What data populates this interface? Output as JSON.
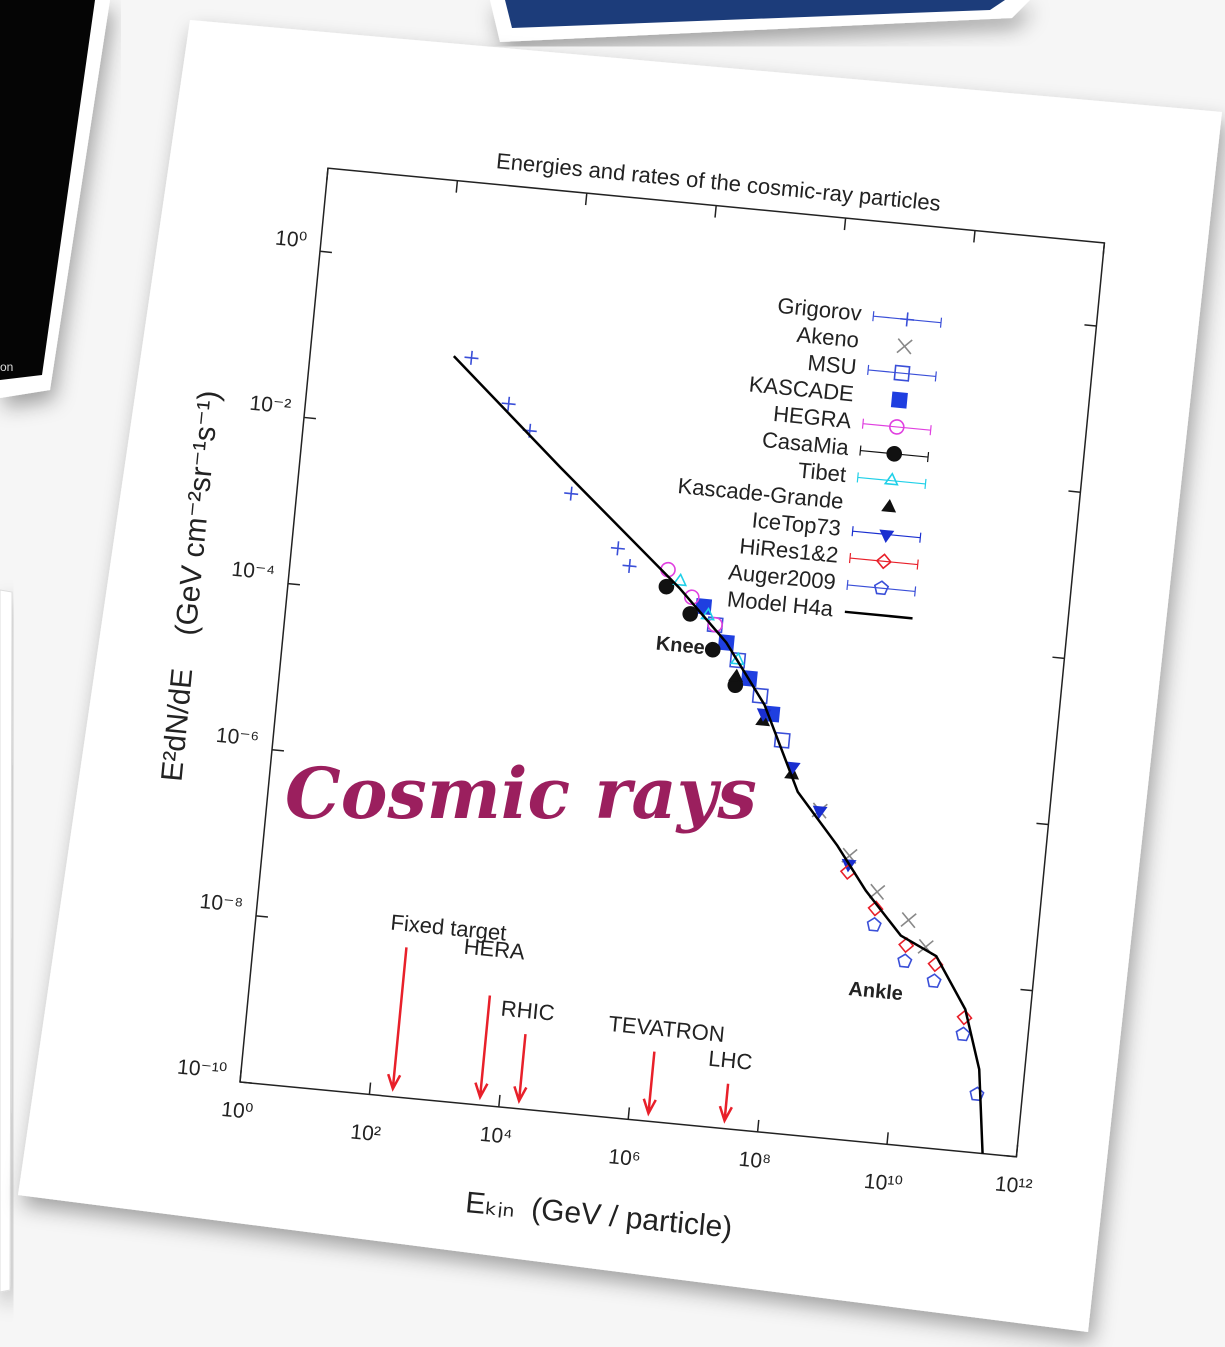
{
  "background_photo": {
    "caption": "on"
  },
  "overlay_text": "Cosmic rays",
  "chart_data": {
    "type": "scatter",
    "title": "Energies and rates of the cosmic-ray particles",
    "x_label": "Eₖᵢₙ  (GeV / particle)",
    "y_label": "E²dN/dE    (GeV cm⁻²sr⁻¹s⁻¹)",
    "xscale": "log",
    "yscale": "log",
    "grid": false,
    "legend": "top right",
    "xlim": [
      1,
      1000000000000.0
    ],
    "ylim": [
      1e-10,
      10
    ],
    "xticks": [
      {
        "value": 1,
        "label": "10⁰"
      },
      {
        "value": 100,
        "label": "10²"
      },
      {
        "value": 10000.0,
        "label": "10⁴"
      },
      {
        "value": 1000000.0,
        "label": "10⁶"
      },
      {
        "value": 100000000.0,
        "label": "10⁸"
      },
      {
        "value": 10000000000.0,
        "label": "10¹⁰"
      },
      {
        "value": 1000000000000.0,
        "label": "10¹²"
      }
    ],
    "yticks": [
      {
        "value": 1e-10,
        "label": "10⁻¹⁰"
      },
      {
        "value": 1e-08,
        "label": "10⁻⁸"
      },
      {
        "value": 1e-06,
        "label": "10⁻⁶"
      },
      {
        "value": 0.0001,
        "label": "10⁻⁴"
      },
      {
        "value": 0.01,
        "label": "10⁻²"
      },
      {
        "value": 1,
        "label": "10⁰"
      }
    ],
    "series": [
      {
        "name": "Grigorov",
        "color": "#3a4fd8",
        "marker": "plus",
        "x": [
          300,
          1300,
          3000,
          16000,
          100000,
          160000
        ],
        "values": [
          0.08,
          0.025,
          0.0126,
          0.0025,
          0.00063,
          0.0004
        ]
      },
      {
        "name": "Akeno",
        "color": "#888888",
        "marker": "cross",
        "x": [
          300000000.0,
          1000000000.0,
          3000000000.0,
          10000000000.0,
          20000000000.0
        ],
        "values": [
          8e-07,
          2.5e-07,
          1e-07,
          5e-08,
          2.5e-08
        ]
      },
      {
        "name": "MSU",
        "color": "#3a4fd8",
        "marker": "square-open",
        "x": [
          4000000.0,
          10000000.0,
          25000000.0,
          63000000.0
        ],
        "values": [
          0.0001,
          4e-05,
          1.6e-05,
          5e-06
        ]
      },
      {
        "name": "KASCADE",
        "color": "#1f3fe0",
        "marker": "square",
        "x": [
          2500000.0,
          6300000.0,
          16000000.0,
          40000000.0
        ],
        "values": [
          0.00016,
          6.3e-05,
          2.5e-05,
          1e-05
        ]
      },
      {
        "name": "HEGRA",
        "color": "#e040e0",
        "marker": "circle-open",
        "x": [
          630000.0,
          1600000.0,
          4000000.0
        ],
        "values": [
          0.0004,
          0.0002,
          0.0001
        ]
      },
      {
        "name": "CasaMia",
        "color": "#111111",
        "marker": "circle",
        "x": [
          630000.0,
          1600000.0,
          4000000.0,
          10000000.0
        ],
        "values": [
          0.00025,
          0.000126,
          5e-05,
          2e-05
        ]
      },
      {
        "name": "Tibet",
        "color": "#20d0e8",
        "marker": "triangle-open",
        "x": [
          1000000.0,
          3000000.0,
          10000000.0
        ],
        "values": [
          0.0003,
          0.000126,
          4e-05
        ]
      },
      {
        "name": "Kascade-Grande",
        "color": "#111111",
        "marker": "triangle",
        "x": [
          10000000.0,
          30000000.0,
          100000000.0
        ],
        "values": [
          2.5e-05,
          8e-06,
          2e-06
        ]
      },
      {
        "name": "IceTop73",
        "color": "#1a2fd0",
        "marker": "triangle-down",
        "x": [
          30000000.0,
          100000000.0,
          300000000.0,
          1000000000.0
        ],
        "values": [
          1e-05,
          2.5e-06,
          8e-07,
          2e-07
        ]
      },
      {
        "name": "HiRes1&2",
        "color": "#e8202a",
        "marker": "diamond-open",
        "x": [
          1000000000.0,
          3000000000.0,
          10000000000.0,
          30000000000.0,
          100000000000.0
        ],
        "values": [
          1.6e-07,
          6.3e-08,
          2.5e-08,
          1.6e-08,
          4e-09
        ]
      },
      {
        "name": "Auger2009",
        "color": "#3a4fd8",
        "marker": "pentagon-open",
        "x": [
          3000000000.0,
          10000000000.0,
          30000000000.0,
          100000000000.0,
          200000000000.0
        ],
        "values": [
          4e-08,
          1.6e-08,
          1e-08,
          2.5e-09,
          5e-10
        ]
      },
      {
        "name": "Model H4a",
        "color": "#000000",
        "marker": "line",
        "x": [
          160,
          10000.0,
          1000000.0,
          6300000.0,
          30000000.0,
          130000000.0,
          630000000.0,
          2000000000.0,
          8000000000.0,
          30000000000.0,
          100000000000.0,
          200000000000.0,
          300000000000.0
        ],
        "values": [
          0.08,
          0.005,
          0.00025,
          6.3e-05,
          1.26e-05,
          1.26e-06,
          3.2e-07,
          1e-07,
          3.2e-08,
          2e-08,
          5e-09,
          1e-09,
          1e-10
        ]
      }
    ],
    "annotations": [
      {
        "text": "Knee",
        "x": 1260000.0,
        "y": 5e-05
      },
      {
        "text": "Ankle",
        "x": 4000000000.0,
        "y": 6.3e-09
      }
    ],
    "arrows": [
      {
        "text": "Fixed target",
        "x": 224
      },
      {
        "text": "HERA",
        "x": 5000
      },
      {
        "text": "RHIC",
        "x": 20000
      },
      {
        "text": "TEVATRON",
        "x": 2000000.0
      },
      {
        "text": "LHC",
        "x": 30000000.0
      }
    ]
  }
}
